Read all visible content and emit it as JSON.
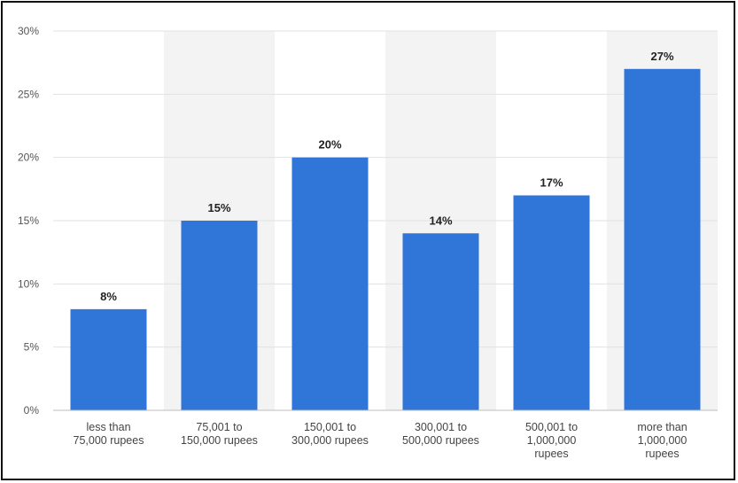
{
  "chart_data": {
    "type": "bar",
    "categories": [
      [
        "less than",
        "75,000 rupees"
      ],
      [
        "75,001 to",
        "150,000 rupees"
      ],
      [
        "150,001 to",
        "300,000 rupees"
      ],
      [
        "300,001 to",
        "500,000 rupees"
      ],
      [
        "500,001 to",
        "1,000,000",
        "rupees"
      ],
      [
        "more than",
        "1,000,000",
        "rupees"
      ]
    ],
    "values": [
      8,
      15,
      20,
      14,
      17,
      27
    ],
    "data_labels": [
      "8%",
      "15%",
      "20%",
      "14%",
      "17%",
      "27%"
    ],
    "yticks": [
      0,
      5,
      10,
      15,
      20,
      25,
      30
    ],
    "ytick_labels": [
      "0%",
      "5%",
      "10%",
      "15%",
      "20%",
      "25%",
      "30%"
    ],
    "ylim": [
      0,
      30
    ],
    "title": "",
    "xlabel": "",
    "ylabel": "",
    "grid": true,
    "alternating_band_fill": true,
    "bar_color": "#2f76d8",
    "band_color": "#f3f3f3",
    "grid_color": "#e2e2e2"
  }
}
